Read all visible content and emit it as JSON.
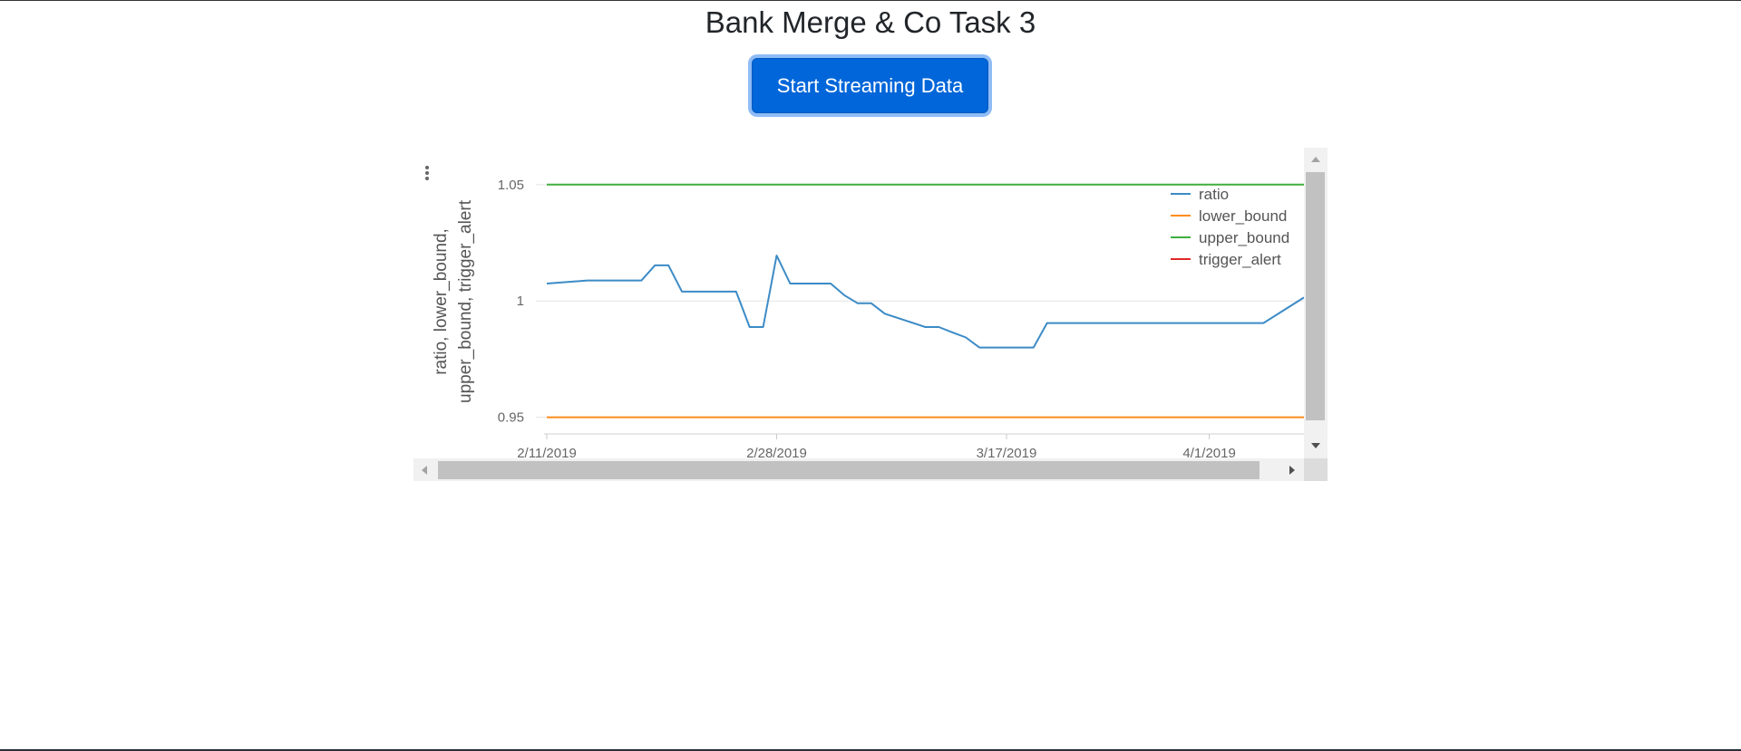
{
  "page": {
    "title": "Bank Merge & Co Task 3",
    "stream_button_label": "Start Streaming Data"
  },
  "colors": {
    "button": "#0066d9",
    "ratio": "#3c8bc6",
    "lower_bound": "#ff8c1a",
    "upper_bound": "#3fae3f",
    "trigger_alert": "#e02828"
  },
  "chart_data": {
    "type": "line",
    "title": "",
    "xlabel": "",
    "ylabel": "ratio, lower_bound, upper_bound, trigger_alert",
    "ylabel_lines": [
      "ratio, lower_bound,",
      "upper_bound, trigger_alert"
    ],
    "ylim": [
      0.944,
      1.055
    ],
    "xlim": [
      "2019-02-11",
      "2019-04-08"
    ],
    "x_ticks": [
      {
        "date": "2019-02-11",
        "label": "2/11/2019"
      },
      {
        "date": "2019-02-28",
        "label": "2/28/2019"
      },
      {
        "date": "2019-03-17",
        "label": "3/17/2019"
      },
      {
        "date": "2019-04-01",
        "label": "4/1/2019"
      }
    ],
    "y_ticks": [
      {
        "value": 0.95,
        "label": "0.95"
      },
      {
        "value": 1.0,
        "label": "1"
      },
      {
        "value": 1.05,
        "label": "1.05"
      }
    ],
    "grid": true,
    "legend_position": "top-right",
    "series": [
      {
        "name": "ratio",
        "color": "#3c8bc6",
        "x": [
          "2019-02-11",
          "2019-02-14",
          "2019-02-15",
          "2019-02-18",
          "2019-02-19",
          "2019-02-20",
          "2019-02-21",
          "2019-02-22",
          "2019-02-25",
          "2019-02-26",
          "2019-02-27",
          "2019-02-28",
          "2019-03-01",
          "2019-03-04",
          "2019-03-05",
          "2019-03-06",
          "2019-03-07",
          "2019-03-08",
          "2019-03-11",
          "2019-03-12",
          "2019-03-13",
          "2019-03-14",
          "2019-03-15",
          "2019-03-18",
          "2019-03-19",
          "2019-03-20",
          "2019-03-21",
          "2019-03-22",
          "2019-04-05",
          "2019-04-08"
        ],
        "values": [
          1.0075,
          1.0088,
          1.0088,
          1.0088,
          1.0153,
          1.0153,
          1.004,
          1.004,
          1.004,
          0.9888,
          0.9888,
          1.0195,
          1.0075,
          1.0075,
          1.0025,
          0.999,
          0.999,
          0.9945,
          0.9888,
          0.9888,
          0.9865,
          0.9843,
          0.98,
          0.98,
          0.98,
          0.9905,
          0.9905,
          0.9905,
          0.9905,
          1.0015
        ]
      },
      {
        "name": "lower_bound",
        "color": "#ff8c1a",
        "x": [
          "2019-02-11",
          "2019-04-08"
        ],
        "values": [
          0.95,
          0.95
        ]
      },
      {
        "name": "upper_bound",
        "color": "#3fae3f",
        "x": [
          "2019-02-11",
          "2019-04-08"
        ],
        "values": [
          1.05,
          1.05
        ]
      },
      {
        "name": "trigger_alert",
        "color": "#e02828",
        "x": [],
        "values": []
      }
    ]
  }
}
